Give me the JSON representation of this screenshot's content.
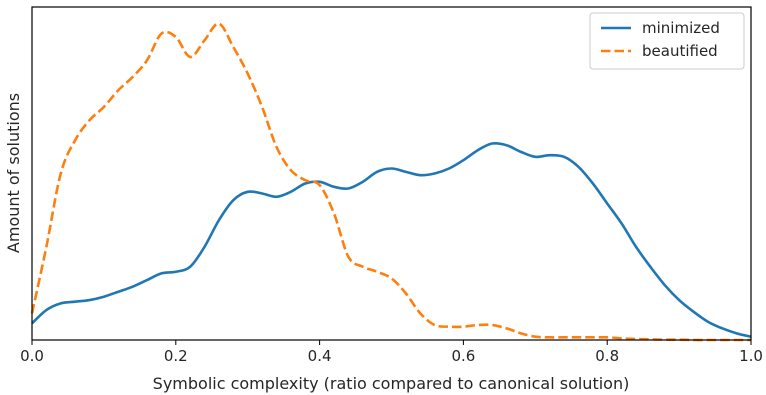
{
  "chart_data": {
    "type": "line",
    "title": "",
    "xlabel": "Symbolic complexity (ratio compared to canonical solution)",
    "ylabel": "Amount of solutions",
    "xlim": [
      0.0,
      1.0
    ],
    "ylim": [
      0.0,
      1.0
    ],
    "x_ticks": [
      "0.0",
      "0.2",
      "0.4",
      "0.6",
      "0.8",
      "1.0"
    ],
    "y_ticks": [],
    "grid": false,
    "legend_position": "top-right",
    "series": [
      {
        "name": "minimized",
        "color": "#1f77b4",
        "line_style": "solid",
        "x": [
          0.0,
          0.02,
          0.04,
          0.06,
          0.08,
          0.1,
          0.12,
          0.14,
          0.16,
          0.18,
          0.2,
          0.22,
          0.24,
          0.26,
          0.28,
          0.3,
          0.32,
          0.34,
          0.36,
          0.38,
          0.4,
          0.42,
          0.44,
          0.46,
          0.48,
          0.5,
          0.52,
          0.54,
          0.56,
          0.58,
          0.6,
          0.62,
          0.64,
          0.66,
          0.68,
          0.7,
          0.72,
          0.74,
          0.76,
          0.78,
          0.8,
          0.82,
          0.84,
          0.86,
          0.88,
          0.9,
          0.92,
          0.94,
          0.96,
          0.98,
          1.0
        ],
        "values": [
          0.05,
          0.09,
          0.11,
          0.115,
          0.12,
          0.13,
          0.145,
          0.16,
          0.18,
          0.2,
          0.205,
          0.22,
          0.28,
          0.36,
          0.42,
          0.445,
          0.44,
          0.43,
          0.445,
          0.47,
          0.475,
          0.46,
          0.455,
          0.475,
          0.505,
          0.515,
          0.505,
          0.495,
          0.5,
          0.515,
          0.54,
          0.57,
          0.59,
          0.585,
          0.565,
          0.55,
          0.555,
          0.55,
          0.52,
          0.47,
          0.41,
          0.35,
          0.28,
          0.22,
          0.165,
          0.12,
          0.085,
          0.055,
          0.035,
          0.02,
          0.01
        ]
      },
      {
        "name": "beautified",
        "color": "#ff7f0e",
        "line_style": "dashed",
        "x": [
          0.0,
          0.02,
          0.04,
          0.06,
          0.08,
          0.1,
          0.12,
          0.14,
          0.16,
          0.18,
          0.2,
          0.22,
          0.24,
          0.26,
          0.28,
          0.3,
          0.32,
          0.34,
          0.36,
          0.38,
          0.4,
          0.42,
          0.44,
          0.46,
          0.48,
          0.5,
          0.52,
          0.54,
          0.56,
          0.58,
          0.6,
          0.62,
          0.64,
          0.66,
          0.68,
          0.7,
          0.72,
          0.74,
          0.76,
          0.78,
          0.8,
          0.82,
          0.84,
          0.86,
          0.88,
          0.9,
          0.92,
          0.94,
          0.96,
          0.98,
          1.0
        ],
        "values": [
          0.08,
          0.28,
          0.5,
          0.6,
          0.66,
          0.7,
          0.75,
          0.79,
          0.84,
          0.92,
          0.91,
          0.85,
          0.9,
          0.95,
          0.88,
          0.8,
          0.7,
          0.58,
          0.51,
          0.48,
          0.465,
          0.38,
          0.25,
          0.22,
          0.205,
          0.185,
          0.14,
          0.08,
          0.045,
          0.04,
          0.04,
          0.045,
          0.045,
          0.035,
          0.02,
          0.01,
          0.008,
          0.008,
          0.008,
          0.008,
          0.008,
          0.005,
          0.003,
          0.002,
          0.001,
          0.001,
          0.0,
          0.0,
          0.0,
          0.0,
          0.0
        ]
      }
    ]
  }
}
